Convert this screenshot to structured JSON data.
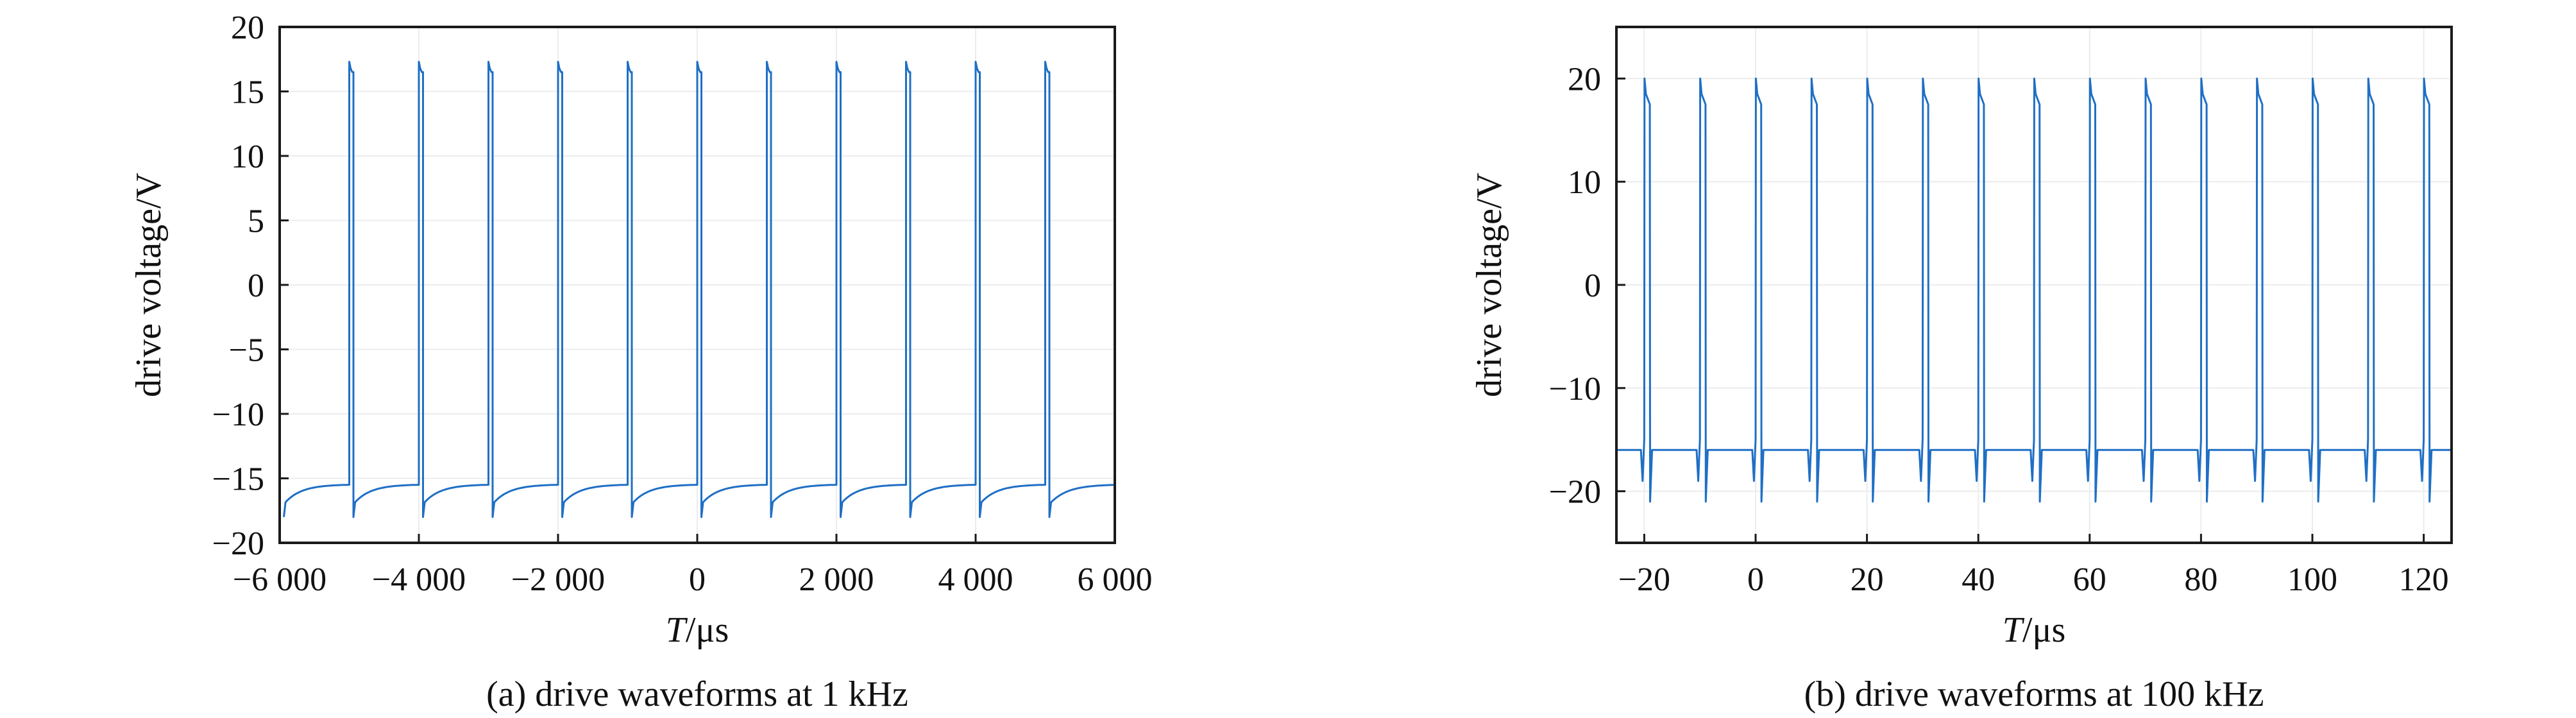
{
  "chart_data": [
    {
      "type": "line",
      "caption": "(a) drive waveforms at 1 kHz",
      "xlabel_italic": "T",
      "xlabel_unit": "/μs",
      "ylabel": "drive voltage/V",
      "xlim": [
        -6000,
        6000
      ],
      "ylim": [
        -20,
        20
      ],
      "xticks": [
        -6000,
        -4000,
        -2000,
        0,
        2000,
        4000,
        6000
      ],
      "xtick_labels": [
        "−6 000",
        "−4 000",
        "−2 000",
        "0",
        "2 000",
        "4 000",
        "6 000"
      ],
      "yticks": [
        -20,
        -15,
        -10,
        -5,
        0,
        5,
        10,
        15,
        20
      ],
      "ytick_labels": [
        "−20",
        "−15",
        "−10",
        "−5",
        "0",
        "5",
        "10",
        "15",
        "20"
      ],
      "grid": true,
      "series": [
        {
          "color": "#1f6fc5",
          "pulse_period": 1000,
          "pulse_width": 60,
          "pulse_rises_at": [
            -5000,
            -4000,
            -3000,
            -2000,
            -1000,
            0,
            1000,
            2000,
            3000,
            4000,
            5000
          ],
          "high_level": 16.5,
          "high_peak": 17.3,
          "low_level_start": -17.0,
          "low_level_end": -15.5,
          "low_dip": -18.0
        }
      ]
    },
    {
      "type": "line",
      "caption": "(b) drive waveforms at 100 kHz",
      "xlabel_italic": "T",
      "xlabel_unit": "/μs",
      "ylabel": "drive voltage/V",
      "xlim": [
        -25,
        125
      ],
      "ylim": [
        -25,
        25
      ],
      "xticks": [
        -20,
        0,
        20,
        40,
        60,
        80,
        100,
        120
      ],
      "xtick_labels": [
        "−20",
        "0",
        "20",
        "40",
        "60",
        "80",
        "100",
        "120"
      ],
      "yticks": [
        -20,
        -10,
        0,
        10,
        20
      ],
      "ytick_labels": [
        "−20",
        "−10",
        "0",
        "10",
        "20"
      ],
      "grid": true,
      "series": [
        {
          "color": "#1f6fc5",
          "pulse_period": 10,
          "pulse_width": 1.0,
          "pulse_rises_at": [
            -20,
            -10,
            0,
            10,
            20,
            30,
            40,
            50,
            60,
            70,
            80,
            90,
            100,
            110,
            120
          ],
          "high_level": 17.5,
          "high_peak": 20,
          "low_level": -16,
          "low_dip": -21
        }
      ]
    }
  ]
}
